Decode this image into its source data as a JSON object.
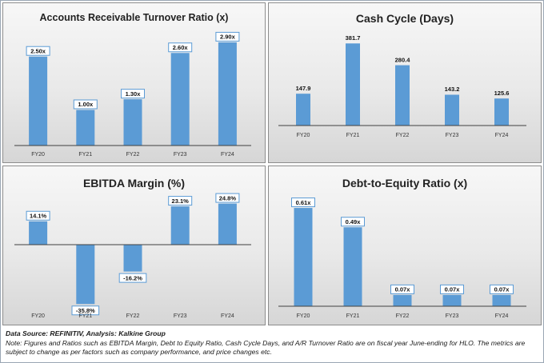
{
  "colors": {
    "bar": "#5b9bd5",
    "axis": "#404040",
    "label_box": "#5b9bd5"
  },
  "footer": {
    "source": "Data Source: REFINITIV, Analysis: Kalkine Group",
    "note": "Note: Figures and Ratios such as EBITDA Margin, Debt to Equity Ratio, Cash Cycle Days, and A/R Turnover Ratio are on fiscal year June-ending for HLO. The metrics are subject to change as per factors such as company performance, and price changes etc."
  },
  "chart_data": [
    {
      "type": "bar",
      "title": "Accounts Receivable Turnover Ratio (x)",
      "categories": [
        "FY20",
        "FY21",
        "FY22",
        "FY23",
        "FY24"
      ],
      "values": [
        2.5,
        1.0,
        1.3,
        2.6,
        2.9
      ],
      "data_labels": [
        "2.50x",
        "1.00x",
        "1.30x",
        "2.60x",
        "2.90x"
      ],
      "ylim": [
        0,
        3.1
      ],
      "label_style": "boxed",
      "grid": false
    },
    {
      "type": "bar",
      "title": "Cash Cycle (Days)",
      "categories": [
        "FY20",
        "FY21",
        "FY22",
        "FY23",
        "FY24"
      ],
      "values": [
        147.9,
        381.7,
        280.4,
        143.2,
        125.6
      ],
      "data_labels": [
        "147.9",
        "381.7",
        "280.4",
        "143.2",
        "125.6"
      ],
      "ylim": [
        0,
        420
      ],
      "label_style": "plain",
      "grid": false
    },
    {
      "type": "bar",
      "title": "EBITDA Margin (%)",
      "categories": [
        "FY20",
        "FY21",
        "FY22",
        "FY23",
        "FY24"
      ],
      "values": [
        14.1,
        -35.8,
        -16.2,
        23.1,
        24.8
      ],
      "data_labels": [
        "14.1%",
        "-35.8%",
        "-16.2%",
        "23.1%",
        "24.8%"
      ],
      "ylim": [
        -36,
        27
      ],
      "label_style": "boxed",
      "grid": false
    },
    {
      "type": "bar",
      "title": "Debt-to-Equity Ratio (x)",
      "categories": [
        "FY20",
        "FY21",
        "FY22",
        "FY23",
        "FY24"
      ],
      "values": [
        0.61,
        0.49,
        0.07,
        0.07,
        0.07
      ],
      "data_labels": [
        "0.61x",
        "0.49x",
        "0.07x",
        "0.07x",
        "0.07x"
      ],
      "ylim": [
        0,
        0.66
      ],
      "label_style": "boxed",
      "grid": false
    }
  ]
}
